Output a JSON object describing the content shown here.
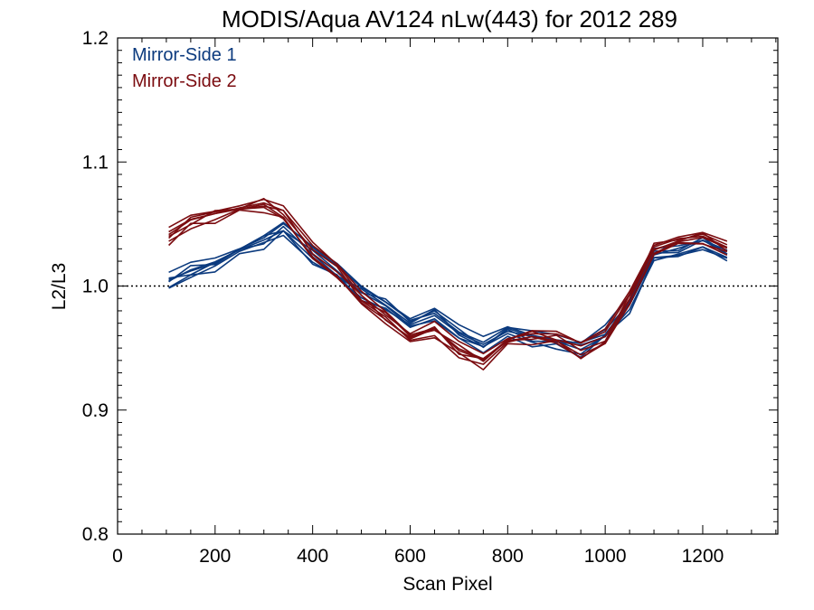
{
  "chart_data": {
    "type": "line",
    "title": "MODIS/Aqua AV124 nLw(443) for 2012 289",
    "xlabel": "Scan Pixel",
    "ylabel": "L2/L3",
    "xlim": [
      0,
      1354
    ],
    "ylim": [
      0.8,
      1.2
    ],
    "x_ticks": [
      0,
      200,
      400,
      600,
      800,
      1000,
      1200
    ],
    "x_tick_labels": [
      "0",
      "200",
      "400",
      "600",
      "800",
      "1000",
      "1200"
    ],
    "y_ticks": [
      0.8,
      0.9,
      1.0,
      1.1,
      1.2
    ],
    "y_tick_labels": [
      "0.8",
      "0.9",
      "1.0",
      "1.1",
      "1.2"
    ],
    "reference_line": 1.0,
    "legend_position": "top-left",
    "grid": false,
    "series": [
      {
        "name": "Mirror-Side 1",
        "color": "#0b3a7e",
        "x": [
          105,
          150,
          200,
          250,
          300,
          340,
          400,
          450,
          500,
          550,
          600,
          650,
          700,
          750,
          800,
          850,
          900,
          950,
          1000,
          1050,
          1100,
          1150,
          1200,
          1250
        ],
        "values": [
          1.004,
          1.012,
          1.018,
          1.028,
          1.037,
          1.046,
          1.025,
          1.011,
          0.995,
          0.985,
          0.972,
          0.978,
          0.962,
          0.952,
          0.962,
          0.958,
          0.955,
          0.95,
          0.962,
          0.985,
          1.025,
          1.03,
          1.035,
          1.025
        ]
      },
      {
        "name": "Mirror-Side 2",
        "color": "#7b0c10",
        "x": [
          105,
          150,
          200,
          250,
          300,
          340,
          400,
          450,
          500,
          550,
          600,
          650,
          700,
          750,
          800,
          850,
          900,
          950,
          1000,
          1050,
          1100,
          1150,
          1200,
          1250
        ],
        "values": [
          1.04,
          1.052,
          1.058,
          1.063,
          1.066,
          1.058,
          1.028,
          1.012,
          0.99,
          0.975,
          0.958,
          0.965,
          0.948,
          0.94,
          0.955,
          0.96,
          0.958,
          0.948,
          0.958,
          0.99,
          1.03,
          1.038,
          1.04,
          1.03
        ]
      }
    ]
  }
}
